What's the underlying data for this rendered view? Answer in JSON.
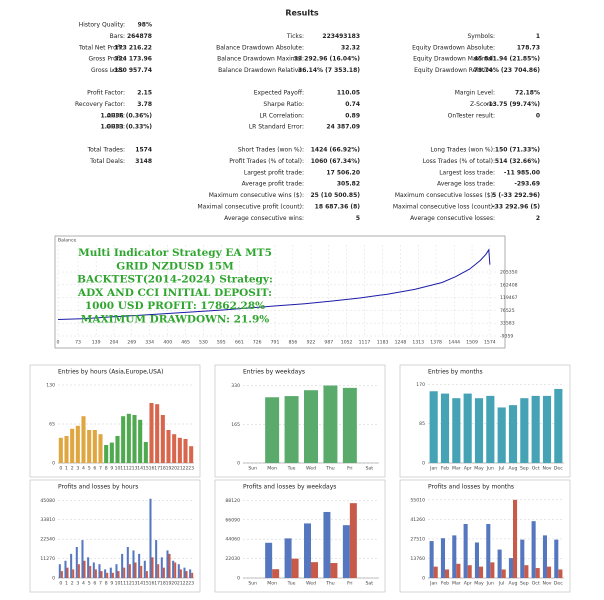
{
  "results": {
    "title": "Results",
    "sections": [
      [
        [
          [
            "History Quality:",
            "98%"
          ]
        ],
        [
          [
            "Bars:",
            "264878"
          ],
          [
            "Ticks:",
            "223493183"
          ],
          [
            "Symbols:",
            "1"
          ]
        ],
        [
          [
            "Total Net Profit:",
            "173 216.22"
          ],
          [
            "Balance Drawdown Absolute:",
            "32.32"
          ],
          [
            "Equity Drawdown Absolute:",
            "178.73"
          ]
        ],
        [
          [
            "Gross Profit:",
            "324 173.96"
          ],
          [
            "Balance Drawdown Maximal:",
            "33 292.96 (16.04%)"
          ],
          [
            "Equity Drawdown Maximal:",
            "45 841.94 (21.85%)"
          ]
        ],
        [
          [
            "Gross Loss:",
            "-150 957.74"
          ],
          [
            "Balance Drawdown Relative:",
            "36.14% (7 353.18)"
          ],
          [
            "Equity Drawdown Relative:",
            "79.74% (23 704.86)"
          ]
        ]
      ],
      [
        [
          [
            "Profit Factor:",
            "2.15"
          ],
          [
            "Expected Payoff:",
            "110.05"
          ],
          [
            "Margin Level:",
            "72.18%"
          ]
        ],
        [
          [
            "Recovery Factor:",
            "3.78"
          ],
          [
            "Sharpe Ratio:",
            "0.74"
          ],
          [
            "Z-Score:",
            "-13.75 (99.74%)"
          ]
        ],
        [
          [
            "AHPR:",
            "1.0036 (0.36%)"
          ],
          [
            "LR Correlation:",
            "0.89"
          ],
          [
            "OnTester result:",
            "0"
          ]
        ],
        [
          [
            "GHPR:",
            "1.0033 (0.33%)"
          ],
          [
            "LR Standard Error:",
            "24 387.09"
          ]
        ]
      ],
      [
        [
          [
            "Total Trades:",
            "1574"
          ],
          [
            "Short Trades (won %):",
            "1424 (66.92%)"
          ],
          [
            "Long Trades (won %):",
            "150 (71.33%)"
          ]
        ],
        [
          [
            "Total Deals:",
            "3148"
          ],
          [
            "Profit Trades (% of total):",
            "1060 (67.34%)"
          ],
          [
            "Loss Trades (% of total):",
            "514 (32.66%)"
          ]
        ],
        [
          null,
          [
            "Largest profit trade:",
            "17 506.20"
          ],
          [
            "Largest loss trade:",
            "-11 985.00"
          ]
        ],
        [
          null,
          [
            "Average profit trade:",
            "305.82"
          ],
          [
            "Average loss trade:",
            "-293.69"
          ]
        ],
        [
          null,
          [
            "Maximum consecutive wins ($):",
            "25 (10 500.85)"
          ],
          [
            "Maximum consecutive losses ($):",
            "5 (-33 292.96)"
          ]
        ],
        [
          null,
          [
            "Maximal consecutive profit (count):",
            "18 687.36 (8)"
          ],
          [
            "Maximal consecutive loss (count):",
            "-33 292.96 (5)"
          ]
        ],
        [
          null,
          [
            "Average consecutive wins:",
            "5"
          ],
          [
            "Average consecutive losses:",
            "2"
          ]
        ]
      ]
    ]
  },
  "balance_chart": {
    "type": "line",
    "label": "Balance",
    "color": "#1c1ca8",
    "x": [
      0,
      100,
      200,
      300,
      400,
      500,
      600,
      700,
      800,
      900,
      1000,
      1100,
      1200,
      1300,
      1400,
      1450,
      1500,
      1540,
      1560,
      1570,
      1574
    ],
    "y": [
      46000,
      49000,
      55000,
      60000,
      66000,
      72000,
      78000,
      85000,
      92000,
      99000,
      108000,
      118000,
      131000,
      147000,
      170000,
      190000,
      215000,
      245000,
      265000,
      280000,
      230000
    ],
    "xlim": [
      0,
      1600
    ],
    "ylim": [
      -9359,
      296000
    ],
    "xticks": [
      0,
      73,
      139,
      204,
      269,
      334,
      400,
      465,
      530,
      595,
      661,
      726,
      791,
      856,
      922,
      987,
      1052,
      1117,
      1183,
      1248,
      1313,
      1378,
      1444,
      1509,
      1574
    ],
    "yticks": [
      -9359,
      33583,
      76525,
      119467,
      162408,
      205350
    ],
    "grid": true
  },
  "overlay_text": [
    "Multi Indicator Strategy EA MT5",
    "GRID NZDUSD 15M",
    "BACKTEST(2014-2024) Strategy:",
    "ADX AND CCI INITIAL DEPOSIT:",
    "1000 USD PROFIT: 17862.28%",
    "MAXIMUM DRAWDOWN: 21.9%"
  ],
  "bar_charts": [
    {
      "type": "bar",
      "title": "Entries by hours (Asia,Europe,USA)",
      "categories": [
        "0",
        "1",
        "2",
        "3",
        "4",
        "5",
        "6",
        "7",
        "8",
        "9",
        "10",
        "11",
        "12",
        "13",
        "14",
        "15",
        "16",
        "17",
        "18",
        "19",
        "20",
        "21",
        "22",
        "23"
      ],
      "ylim": [
        0,
        135
      ],
      "yticks": [
        0,
        65,
        130
      ],
      "grid": true,
      "series": [
        {
          "colors": [
            "#e0a640",
            "#e0a640",
            "#e0a640",
            "#e0a640",
            "#e0a640",
            "#e0a640",
            "#e0a640",
            "#e0a640",
            "#4fa94f",
            "#4fa94f",
            "#4fa94f",
            "#4fa94f",
            "#4fa94f",
            "#4fa94f",
            "#4fa94f",
            "#4fa94f",
            "#d8664c",
            "#d8664c",
            "#d8664c",
            "#d8664c",
            "#d8664c",
            "#d8664c",
            "#d8664c",
            "#d8664c"
          ],
          "values": [
            42,
            45,
            57,
            62,
            78,
            55,
            55,
            48,
            30,
            34,
            45,
            78,
            82,
            80,
            72,
            35,
            100,
            98,
            80,
            55,
            48,
            42,
            40,
            28
          ]
        }
      ]
    },
    {
      "type": "bar",
      "title": "Entries by weekdays",
      "categories": [
        "Sun",
        "Mon",
        "Tue",
        "Wed",
        "Thu",
        "Fri",
        "Sat"
      ],
      "ylim": [
        0,
        345
      ],
      "yticks": [
        0,
        165,
        330
      ],
      "grid": true,
      "series": [
        {
          "color": "#5aaa6c",
          "values": [
            0,
            280,
            285,
            310,
            330,
            320,
            0
          ]
        }
      ]
    },
    {
      "type": "bar",
      "title": "Entries by months",
      "categories": [
        "Jan",
        "Feb",
        "Mar",
        "Apr",
        "May",
        "Jun",
        "Jul",
        "Aug",
        "Sep",
        "Oct",
        "Nov",
        "Dec"
      ],
      "ylim": [
        0,
        175
      ],
      "yticks": [
        0,
        85,
        170
      ],
      "grid": true,
      "series": [
        {
          "color": "#46a3b6",
          "values": [
            155,
            150,
            140,
            150,
            140,
            145,
            120,
            125,
            140,
            145,
            145,
            160
          ]
        }
      ]
    },
    {
      "type": "bar",
      "title": "Profits and losses by hours",
      "categories": [
        "0",
        "1",
        "2",
        "3",
        "4",
        "5",
        "6",
        "7",
        "8",
        "9",
        "10",
        "11",
        "12",
        "13",
        "14",
        "15",
        "16",
        "17",
        "18",
        "19",
        "20",
        "21",
        "22",
        "23"
      ],
      "ylim": [
        0,
        47000
      ],
      "yticks": [
        0,
        11270,
        22540,
        33810,
        45080
      ],
      "grid": true,
      "series": [
        {
          "color": "#5577c0",
          "values": [
            8000,
            10000,
            14000,
            18000,
            22000,
            12000,
            9000,
            8000,
            5000,
            6000,
            8000,
            14000,
            18000,
            16000,
            14000,
            10000,
            46000,
            22000,
            12000,
            16000,
            10000,
            8000,
            6000,
            5000
          ]
        },
        {
          "color": "#c85a4a",
          "values": [
            4000,
            6000,
            5000,
            8000,
            10000,
            7000,
            5000,
            4000,
            3000,
            3000,
            4000,
            6000,
            8000,
            9000,
            7000,
            4000,
            12000,
            8000,
            6000,
            14000,
            9000,
            5000,
            4000,
            3000
          ]
        }
      ]
    },
    {
      "type": "bar",
      "title": "Profits and losses by weekdays",
      "categories": [
        "Sun",
        "Mon",
        "Tue",
        "Wed",
        "Thu",
        "Fri",
        "Sat"
      ],
      "ylim": [
        0,
        92000
      ],
      "yticks": [
        0,
        22030,
        44060,
        66090,
        88120
      ],
      "grid": true,
      "series": [
        {
          "color": "#5577c0",
          "values": [
            0,
            40000,
            45000,
            62000,
            75000,
            60000,
            0
          ]
        },
        {
          "color": "#c85a4a",
          "values": [
            0,
            10000,
            22000,
            18000,
            17000,
            85000,
            0
          ]
        }
      ]
    },
    {
      "type": "bar",
      "title": "Profits and losses by months",
      "categories": [
        "Jan",
        "Feb",
        "Mar",
        "Apr",
        "May",
        "Jun",
        "Jul",
        "Aug",
        "Sep",
        "Oct",
        "Nov",
        "Dec"
      ],
      "ylim": [
        0,
        57000
      ],
      "yticks": [
        0,
        13760,
        27510,
        41260,
        55010
      ],
      "grid": true,
      "series": [
        {
          "color": "#5577c0",
          "values": [
            26000,
            28000,
            30000,
            38000,
            25000,
            38000,
            20000,
            14000,
            27000,
            40000,
            30000,
            27000
          ]
        },
        {
          "color": "#c85a4a",
          "values": [
            8000,
            6000,
            10000,
            9000,
            8000,
            11000,
            6000,
            55000,
            9000,
            7000,
            8000,
            6000
          ]
        }
      ]
    }
  ]
}
